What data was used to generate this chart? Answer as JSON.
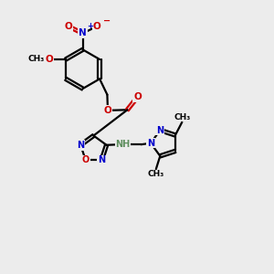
{
  "bg_color": "#ececec",
  "bond_color": "#000000",
  "nitrogen_color": "#0000cc",
  "oxygen_color": "#cc0000",
  "hydrogen_color": "#5f8f5f",
  "line_width": 1.6,
  "figsize": [
    3.0,
    3.0
  ],
  "dpi": 100,
  "xlim": [
    0,
    10
  ],
  "ylim": [
    0,
    10
  ]
}
